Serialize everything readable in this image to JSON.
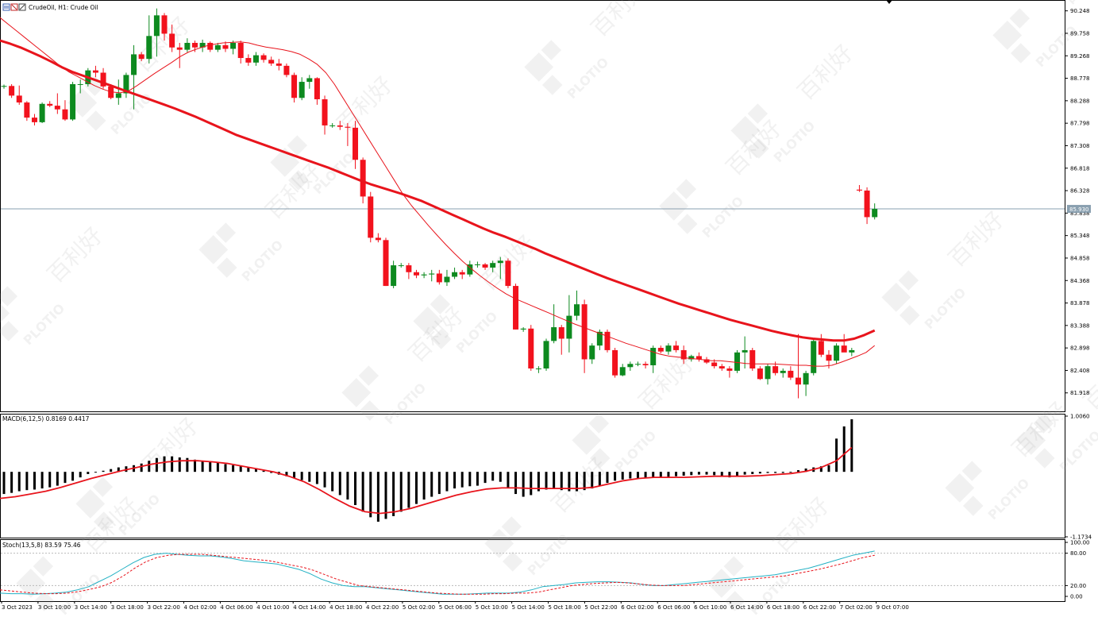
{
  "colors": {
    "bull": "#0d8a1f",
    "bear": "#f2121d",
    "ma": "#e8141c",
    "grid": "#b9b9b9",
    "price_line": "#8aa0b0",
    "stoch_main": "#23b1c4",
    "stoch_signal": "#e8141c",
    "watermark": "#9a9a9a"
  },
  "watermark": {
    "brand": "PLOTIO",
    "cjk": "百利好"
  },
  "header": {
    "symbol_text": "CrudeOil, H1:  Crude Oil",
    "icon": "chart-window-icon"
  },
  "current_price": "85.930",
  "chart_data": [
    {
      "type": "candlestick",
      "title": "CrudeOil, H1:  Crude Oil",
      "ylim": [
        81.55,
        90.45
      ],
      "y_ticks": [
        "90.248",
        "89.758",
        "89.268",
        "88.778",
        "88.288",
        "87.798",
        "87.308",
        "86.818",
        "86.328",
        "85.838",
        "85.348",
        "84.858",
        "84.368",
        "83.878",
        "83.388",
        "82.898",
        "82.408",
        "81.918"
      ],
      "x_ticks": [
        "3 Oct 2023",
        "3 Oct 10:00",
        "3 Oct 14:00",
        "3 Oct 18:00",
        "3 Oct 22:00",
        "4 Oct 02:00",
        "4 Oct 06:00",
        "4 Oct 10:00",
        "4 Oct 14:00",
        "4 Oct 18:00",
        "4 Oct 22:00",
        "5 Oct 02:00",
        "5 Oct 06:00",
        "5 Oct 10:00",
        "5 Oct 14:00",
        "5 Oct 18:00",
        "5 Oct 22:00",
        "6 Oct 02:00",
        "6 Oct 06:00",
        "6 Oct 10:00",
        "6 Oct 14:00",
        "6 Oct 18:00",
        "6 Oct 22:00",
        "7 Oct 02:00",
        "9 Oct 07:00"
      ],
      "candles": [
        [
          88.6,
          88.64,
          88.55,
          88.61
        ],
        [
          88.61,
          88.65,
          88.35,
          88.4
        ],
        [
          88.4,
          88.62,
          88.2,
          88.25
        ],
        [
          88.25,
          88.28,
          87.85,
          87.92
        ],
        [
          87.92,
          88.0,
          87.75,
          87.82
        ],
        [
          87.82,
          88.25,
          87.8,
          88.22
        ],
        [
          88.22,
          88.28,
          88.15,
          88.18
        ],
        [
          88.18,
          88.45,
          88.0,
          88.1
        ],
        [
          88.1,
          88.3,
          87.85,
          87.88
        ],
        [
          87.88,
          88.7,
          87.85,
          88.65
        ],
        [
          88.65,
          88.75,
          88.45,
          88.65
        ],
        [
          88.65,
          89.0,
          88.6,
          88.95
        ],
        [
          88.95,
          89.05,
          88.8,
          88.9
        ],
        [
          88.9,
          89.0,
          88.55,
          88.6
        ],
        [
          88.6,
          88.65,
          88.32,
          88.35
        ],
        [
          88.35,
          88.75,
          88.2,
          88.45
        ],
        [
          88.45,
          88.9,
          88.35,
          88.85
        ],
        [
          88.85,
          89.5,
          88.1,
          89.3
        ],
        [
          89.3,
          89.35,
          89.15,
          89.2
        ],
        [
          89.2,
          90.15,
          89.1,
          89.7
        ],
        [
          89.7,
          90.3,
          89.25,
          90.15
        ],
        [
          90.15,
          90.2,
          89.6,
          89.75
        ],
        [
          89.75,
          89.95,
          89.35,
          89.45
        ],
        [
          89.45,
          89.55,
          89.0,
          89.4
        ],
        [
          89.4,
          89.65,
          89.35,
          89.55
        ],
        [
          89.55,
          89.6,
          89.35,
          89.45
        ],
        [
          89.45,
          89.62,
          89.35,
          89.55
        ],
        [
          89.55,
          89.58,
          89.35,
          89.4
        ],
        [
          89.4,
          89.55,
          89.35,
          89.5
        ],
        [
          89.5,
          89.58,
          89.35,
          89.42
        ],
        [
          89.42,
          89.6,
          89.3,
          89.55
        ],
        [
          89.55,
          89.6,
          89.1,
          89.22
        ],
        [
          89.22,
          89.3,
          89.05,
          89.12
        ],
        [
          89.12,
          89.35,
          89.05,
          89.28
        ],
        [
          89.28,
          89.32,
          89.12,
          89.18
        ],
        [
          89.18,
          89.25,
          89.05,
          89.1
        ],
        [
          89.1,
          89.2,
          88.95,
          89.05
        ],
        [
          89.05,
          89.1,
          88.8,
          88.85
        ],
        [
          88.85,
          88.9,
          88.25,
          88.35
        ],
        [
          88.35,
          88.8,
          88.3,
          88.7
        ],
        [
          88.7,
          88.85,
          88.55,
          88.78
        ],
        [
          88.78,
          88.8,
          88.2,
          88.32
        ],
        [
          88.32,
          88.4,
          87.55,
          87.75
        ],
        [
          87.75,
          87.8,
          87.7,
          87.75
        ],
        [
          87.75,
          87.85,
          87.65,
          87.72
        ],
        [
          87.72,
          87.8,
          87.3,
          87.7
        ],
        [
          87.7,
          87.85,
          86.8,
          87.0
        ],
        [
          87.0,
          87.05,
          86.05,
          86.2
        ],
        [
          86.2,
          86.3,
          85.2,
          85.3
        ],
        [
          85.3,
          85.4,
          85.2,
          85.25
        ],
        [
          85.25,
          85.3,
          84.25,
          84.25
        ],
        [
          84.25,
          84.8,
          84.2,
          84.7
        ],
        [
          84.7,
          84.75,
          84.65,
          84.7
        ],
        [
          84.7,
          84.75,
          84.4,
          84.55
        ],
        [
          84.55,
          84.6,
          84.42,
          84.48
        ],
        [
          84.48,
          84.55,
          84.42,
          84.5
        ],
        [
          84.5,
          84.6,
          84.35,
          84.52
        ],
        [
          84.52,
          84.6,
          84.28,
          84.33
        ],
        [
          84.33,
          84.6,
          84.25,
          84.45
        ],
        [
          84.45,
          84.65,
          84.4,
          84.55
        ],
        [
          84.55,
          84.6,
          84.4,
          84.5
        ],
        [
          84.5,
          84.8,
          84.45,
          84.72
        ],
        [
          84.72,
          84.78,
          84.65,
          84.72
        ],
        [
          84.72,
          84.75,
          84.6,
          84.65
        ],
        [
          84.65,
          84.8,
          84.55,
          84.75
        ],
        [
          84.75,
          84.88,
          84.4,
          84.8
        ],
        [
          84.8,
          84.85,
          84.2,
          84.25
        ],
        [
          84.25,
          84.3,
          83.3,
          83.3
        ],
        [
          83.3,
          83.35,
          83.25,
          83.32
        ],
        [
          83.32,
          83.4,
          82.4,
          82.45
        ],
        [
          82.45,
          82.5,
          82.35,
          82.45
        ],
        [
          82.45,
          83.1,
          82.4,
          83.05
        ],
        [
          83.05,
          83.85,
          83.0,
          83.35
        ],
        [
          83.35,
          83.4,
          82.75,
          83.1
        ],
        [
          83.1,
          84.05,
          82.8,
          83.6
        ],
        [
          83.6,
          84.15,
          83.5,
          83.85
        ],
        [
          83.85,
          83.95,
          82.35,
          82.65
        ],
        [
          82.65,
          83.0,
          82.55,
          82.95
        ],
        [
          82.95,
          83.3,
          82.85,
          83.25
        ],
        [
          83.25,
          83.3,
          82.8,
          82.85
        ],
        [
          82.85,
          82.9,
          82.25,
          82.3
        ],
        [
          82.3,
          82.55,
          82.28,
          82.48
        ],
        [
          82.48,
          82.6,
          82.4,
          82.55
        ],
        [
          82.55,
          82.6,
          82.5,
          82.55
        ],
        [
          82.55,
          82.6,
          82.45,
          82.52
        ],
        [
          82.52,
          82.95,
          82.35,
          82.9
        ],
        [
          82.9,
          82.95,
          82.78,
          82.82
        ],
        [
          82.82,
          83.0,
          82.75,
          82.95
        ],
        [
          82.95,
          83.05,
          82.8,
          82.85
        ],
        [
          82.85,
          82.95,
          82.55,
          82.65
        ],
        [
          82.65,
          82.75,
          82.6,
          82.72
        ],
        [
          82.72,
          82.8,
          82.6,
          82.65
        ],
        [
          82.65,
          82.7,
          82.55,
          82.58
        ],
        [
          82.58,
          82.65,
          82.45,
          82.5
        ],
        [
          82.5,
          82.55,
          82.4,
          82.45
        ],
        [
          82.45,
          82.5,
          82.25,
          82.4
        ],
        [
          82.4,
          82.85,
          82.35,
          82.8
        ],
        [
          82.8,
          83.15,
          82.45,
          82.85
        ],
        [
          82.85,
          82.9,
          82.4,
          82.45
        ],
        [
          82.45,
          82.5,
          82.2,
          82.22
        ],
        [
          82.22,
          82.55,
          82.1,
          82.5
        ],
        [
          82.5,
          82.6,
          82.3,
          82.35
        ],
        [
          82.35,
          82.45,
          82.25,
          82.4
        ],
        [
          82.4,
          82.5,
          82.2,
          82.25
        ],
        [
          82.25,
          83.2,
          81.8,
          82.1
        ],
        [
          82.1,
          82.4,
          81.85,
          82.35
        ],
        [
          82.35,
          83.1,
          82.3,
          83.05
        ],
        [
          83.05,
          83.2,
          82.7,
          82.75
        ],
        [
          82.75,
          82.85,
          82.45,
          82.62
        ],
        [
          82.62,
          83.0,
          82.55,
          82.95
        ],
        [
          82.95,
          83.2,
          82.85,
          82.8
        ],
        [
          82.8,
          82.9,
          82.72,
          82.85
        ],
        [
          86.35,
          86.45,
          86.3,
          86.33
        ],
        [
          86.33,
          86.4,
          85.6,
          85.75
        ],
        [
          85.75,
          86.05,
          85.7,
          85.93
        ]
      ],
      "ma_fast": [
        90.1,
        89.95,
        89.8,
        89.65,
        89.5,
        89.35,
        89.2,
        89.05,
        88.92,
        88.82,
        88.72,
        88.62,
        88.54,
        88.48,
        88.46,
        88.5,
        88.62,
        88.75,
        88.88,
        89.0,
        89.12,
        89.25,
        89.35,
        89.42,
        89.48,
        89.52,
        89.55,
        89.56,
        89.57,
        89.55,
        89.5,
        89.46,
        89.43,
        89.4,
        89.36,
        89.3,
        89.2,
        89.08,
        88.9,
        88.65,
        88.35,
        88.05,
        87.75,
        87.45,
        87.15,
        86.85,
        86.55,
        86.25,
        86.0,
        85.78,
        85.56,
        85.35,
        85.15,
        84.96,
        84.78,
        84.62,
        84.47,
        84.33,
        84.2,
        84.08,
        83.98,
        83.9,
        83.82,
        83.74,
        83.66,
        83.58,
        83.5,
        83.42,
        83.35,
        83.28,
        83.21,
        83.14,
        83.07,
        83.0,
        82.94,
        82.88,
        82.82,
        82.76,
        82.72,
        82.7,
        82.68,
        82.66,
        82.64,
        82.62,
        82.62,
        82.6,
        82.58,
        82.56,
        82.55,
        82.55,
        82.55,
        82.54,
        82.53,
        82.52,
        82.52,
        82.5,
        82.5,
        82.52,
        82.58,
        82.65,
        82.72,
        82.8,
        82.95
      ],
      "ma_slow": [
        89.6,
        89.53,
        89.45,
        89.35,
        89.25,
        89.14,
        89.02,
        88.92,
        88.84,
        88.76,
        88.68,
        88.6,
        88.52,
        88.44,
        88.36,
        88.28,
        88.2,
        88.12,
        88.03,
        87.94,
        87.84,
        87.74,
        87.64,
        87.54,
        87.46,
        87.38,
        87.3,
        87.22,
        87.14,
        87.06,
        86.98,
        86.9,
        86.82,
        86.73,
        86.64,
        86.55,
        86.47,
        86.4,
        86.33,
        86.26,
        86.18,
        86.1,
        86.0,
        85.9,
        85.8,
        85.7,
        85.6,
        85.5,
        85.41,
        85.33,
        85.24,
        85.15,
        85.06,
        84.96,
        84.87,
        84.78,
        84.69,
        84.6,
        84.51,
        84.42,
        84.34,
        84.26,
        84.18,
        84.1,
        84.02,
        83.94,
        83.86,
        83.79,
        83.72,
        83.65,
        83.58,
        83.51,
        83.45,
        83.39,
        83.33,
        83.27,
        83.22,
        83.17,
        83.13,
        83.1,
        83.08,
        83.06,
        83.06,
        83.1,
        83.18,
        83.28
      ]
    },
    {
      "type": "bar",
      "title": "MACD(6,12,5) 0.8169 0.4417",
      "ylim": [
        -1.1734,
        1.006
      ],
      "y_ticks": [
        "1.0060",
        "-1.1734"
      ],
      "values": [
        -0.4,
        -0.38,
        -0.35,
        -0.33,
        -0.32,
        -0.3,
        -0.28,
        -0.25,
        -0.2,
        -0.16,
        -0.1,
        -0.04,
        0.0,
        0.02,
        0.05,
        0.08,
        0.1,
        0.12,
        0.15,
        0.2,
        0.25,
        0.28,
        0.28,
        0.26,
        0.25,
        0.22,
        0.2,
        0.18,
        0.16,
        0.14,
        0.12,
        0.1,
        0.08,
        0.05,
        0.02,
        -0.02,
        -0.05,
        -0.08,
        -0.12,
        -0.15,
        -0.18,
        -0.22,
        -0.28,
        -0.35,
        -0.42,
        -0.5,
        -0.6,
        -0.72,
        -0.82,
        -0.9,
        -0.85,
        -0.8,
        -0.72,
        -0.65,
        -0.58,
        -0.5,
        -0.45,
        -0.4,
        -0.35,
        -0.3,
        -0.28,
        -0.26,
        -0.25,
        -0.2,
        -0.16,
        -0.18,
        -0.28,
        -0.4,
        -0.45,
        -0.42,
        -0.35,
        -0.32,
        -0.3,
        -0.33,
        -0.35,
        -0.35,
        -0.33,
        -0.3,
        -0.25,
        -0.2,
        -0.16,
        -0.14,
        -0.12,
        -0.12,
        -0.11,
        -0.1,
        -0.09,
        -0.09,
        -0.08,
        -0.07,
        -0.06,
        -0.05,
        -0.05,
        -0.06,
        -0.08,
        -0.1,
        -0.07,
        -0.05,
        -0.04,
        -0.03,
        -0.02,
        -0.02,
        -0.02,
        0.0,
        0.03,
        0.06,
        0.08,
        0.1,
        0.12,
        0.6,
        0.82,
        0.95
      ],
      "signal": [
        -0.48,
        -0.45,
        -0.4,
        -0.35,
        -0.28,
        -0.2,
        -0.12,
        -0.05,
        0.02,
        0.08,
        0.14,
        0.18,
        0.2,
        0.2,
        0.18,
        0.15,
        0.1,
        0.05,
        0.0,
        -0.08,
        -0.18,
        -0.32,
        -0.48,
        -0.62,
        -0.72,
        -0.75,
        -0.72,
        -0.66,
        -0.58,
        -0.5,
        -0.42,
        -0.36,
        -0.31,
        -0.29,
        -0.29,
        -0.3,
        -0.3,
        -0.3,
        -0.3,
        -0.28,
        -0.22,
        -0.16,
        -0.12,
        -0.1,
        -0.1,
        -0.1,
        -0.09,
        -0.08,
        -0.08,
        -0.08,
        -0.07,
        -0.05,
        -0.03,
        0.01,
        0.08,
        0.2,
        0.44
      ]
    },
    {
      "type": "line",
      "title": "Stoch(13,5,8) 83.59 75.46",
      "ylim": [
        0,
        100
      ],
      "y_ticks": [
        "100.00",
        "80.00",
        "20.00",
        "0.00"
      ],
      "main": [
        6,
        5,
        5,
        4,
        5,
        6,
        8,
        12,
        18,
        28,
        38,
        50,
        62,
        72,
        78,
        80,
        78,
        76,
        75,
        75,
        73,
        70,
        66,
        64,
        62,
        60,
        55,
        50,
        42,
        32,
        25,
        20,
        18,
        18,
        16,
        14,
        12,
        10,
        8,
        6,
        4,
        4,
        4,
        5,
        6,
        6,
        6,
        8,
        12,
        18,
        20,
        22,
        25,
        26,
        27,
        27,
        26,
        25,
        22,
        20,
        20,
        22,
        24,
        26,
        28,
        30,
        32,
        34,
        36,
        38,
        40,
        44,
        48,
        52,
        58,
        64,
        70,
        76,
        80,
        84
      ],
      "signal": [
        12,
        10,
        8,
        6,
        5,
        5,
        6,
        9,
        13,
        18,
        26,
        38,
        52,
        64,
        72,
        76,
        78,
        78,
        78,
        76,
        74,
        72,
        70,
        68,
        66,
        62,
        58,
        54,
        48,
        40,
        32,
        26,
        20,
        18,
        16,
        14,
        12,
        10,
        8,
        6,
        5,
        4,
        4,
        4,
        5,
        5,
        6,
        6,
        8,
        12,
        16,
        20,
        22,
        24,
        25,
        26,
        25,
        23,
        21,
        20,
        20,
        20,
        22,
        24,
        26,
        28,
        30,
        32,
        34,
        36,
        38,
        42,
        46,
        50,
        55,
        60,
        66,
        72,
        76
      ]
    }
  ]
}
